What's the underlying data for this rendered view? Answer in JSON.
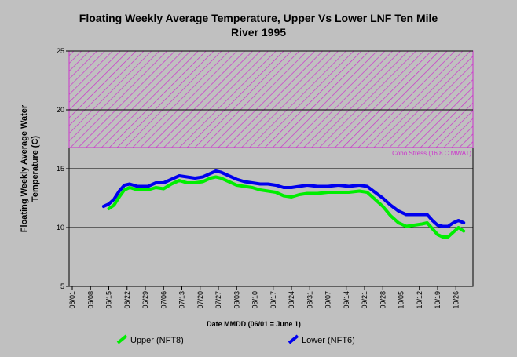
{
  "chart_data": {
    "type": "line",
    "title_lines": [
      "Floating Weekly Average Temperature, Upper Vs Lower LNF Ten Mile",
      "River 1995"
    ],
    "xlabel": "Date MMDD (06/01 = June 1)",
    "ylabel_lines": [
      "Floating Weekly Average Water",
      "Temperature (C)"
    ],
    "x_ticks": [
      "06/01",
      "06/08",
      "06/15",
      "06/22",
      "06/29",
      "07/06",
      "07/13",
      "07/20",
      "07/27",
      "08/03",
      "08/10",
      "08/17",
      "08/24",
      "08/31",
      "09/07",
      "09/14",
      "09/21",
      "09/28",
      "10/05",
      "10/12",
      "10/19",
      "10/26"
    ],
    "y_ticks": [
      5,
      10,
      15,
      20,
      25
    ],
    "ylim": [
      5,
      25
    ],
    "grid_lines_y": [
      10,
      15,
      20,
      25
    ],
    "stress_band": {
      "from": 16.8,
      "to": 25,
      "label": "Coho Stress (16.8 C MWAT)",
      "color": "#cc33cc"
    },
    "series": [
      {
        "name": "Upper (NFT8)",
        "color": "#00ee00",
        "x": [
          "06/15",
          "06/17",
          "06/19",
          "06/21",
          "06/23",
          "06/26",
          "06/30",
          "07/03",
          "07/06",
          "07/09",
          "07/12",
          "07/15",
          "07/18",
          "07/21",
          "07/24",
          "07/26",
          "07/28",
          "07/31",
          "08/03",
          "08/06",
          "08/09",
          "08/12",
          "08/15",
          "08/18",
          "08/21",
          "08/24",
          "08/27",
          "08/30",
          "09/03",
          "09/07",
          "09/11",
          "09/15",
          "09/19",
          "09/22",
          "09/25",
          "09/28",
          "10/01",
          "10/04",
          "10/07",
          "10/10",
          "10/13",
          "10/15",
          "10/17",
          "10/19",
          "10/21",
          "10/23",
          "10/25",
          "10/27",
          "10/29"
        ],
        "y": [
          11.6,
          11.9,
          12.6,
          13.2,
          13.4,
          13.2,
          13.2,
          13.4,
          13.3,
          13.7,
          14.0,
          13.8,
          13.8,
          13.9,
          14.2,
          14.3,
          14.2,
          13.9,
          13.6,
          13.5,
          13.4,
          13.2,
          13.1,
          13.0,
          12.7,
          12.6,
          12.8,
          12.9,
          12.9,
          13.0,
          13.0,
          13.0,
          13.1,
          13.0,
          12.4,
          11.8,
          11.0,
          10.4,
          10.1,
          10.2,
          10.3,
          10.4,
          9.9,
          9.4,
          9.2,
          9.2,
          9.6,
          10.0,
          9.7
        ]
      },
      {
        "name": "Lower (NFT6)",
        "color": "#0000ee",
        "x": [
          "06/13",
          "06/15",
          "06/17",
          "06/19",
          "06/21",
          "06/23",
          "06/26",
          "06/30",
          "07/03",
          "07/06",
          "07/09",
          "07/12",
          "07/15",
          "07/18",
          "07/21",
          "07/24",
          "07/26",
          "07/28",
          "07/31",
          "08/03",
          "08/06",
          "08/09",
          "08/12",
          "08/15",
          "08/18",
          "08/21",
          "08/24",
          "08/27",
          "08/30",
          "09/03",
          "09/07",
          "09/11",
          "09/15",
          "09/19",
          "09/22",
          "09/25",
          "09/28",
          "10/01",
          "10/04",
          "10/07",
          "10/10",
          "10/13",
          "10/15",
          "10/17",
          "10/19",
          "10/21",
          "10/23",
          "10/25",
          "10/27",
          "10/29"
        ],
        "y": [
          11.8,
          12.0,
          12.4,
          13.1,
          13.6,
          13.7,
          13.5,
          13.5,
          13.8,
          13.8,
          14.1,
          14.4,
          14.3,
          14.2,
          14.3,
          14.6,
          14.8,
          14.7,
          14.4,
          14.1,
          13.9,
          13.8,
          13.7,
          13.7,
          13.6,
          13.4,
          13.4,
          13.5,
          13.6,
          13.5,
          13.5,
          13.6,
          13.5,
          13.6,
          13.5,
          13.0,
          12.5,
          11.9,
          11.4,
          11.1,
          11.1,
          11.1,
          11.1,
          10.6,
          10.2,
          10.1,
          10.1,
          10.4,
          10.6,
          10.4
        ]
      }
    ]
  }
}
